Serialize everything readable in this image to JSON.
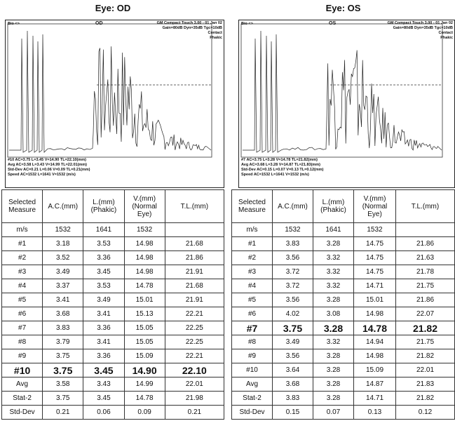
{
  "panels": [
    {
      "title": "Eye: OD",
      "scan": {
        "probe": "Bio <>",
        "eye": "OD",
        "device": "GM Compact Touch 3.00 - 01 Jan 02",
        "settings": "Gain=80dB Dyn=35dB Tgc=10dB",
        "mode": "Contact",
        "lens": "Phakic",
        "readouts": [
          "#10 AC=3.75 L=3.45 V=14.90 TL=22.10(mm)",
          "Avg AC=3.58 L=3.43 V=14.99 TL=22.01(mm)",
          "Std-Dev AC=0.21 L=0.06 V=0.09 TL=0.21(mm)",
          "Speed AC=1532 L=1641 V=1532 (m/s)"
        ]
      },
      "table": {
        "header": [
          "Selected Measure",
          "A.C.(mm)",
          "L.(mm) (Phakic)",
          "V.(mm) (Normal Eye)",
          "T.L.(mm)"
        ],
        "highlight_row": 10,
        "rows": [
          [
            "m/s",
            "1532",
            "1641",
            "1532",
            null
          ],
          [
            "#1",
            "3.18",
            "3.53",
            "14.98",
            "21.68"
          ],
          [
            "#2",
            "3.52",
            "3.36",
            "14.98",
            "21.86"
          ],
          [
            "#3",
            "3.49",
            "3.45",
            "14.98",
            "21.91"
          ],
          [
            "#4",
            "3.37",
            "3.53",
            "14.78",
            "21.68"
          ],
          [
            "#5",
            "3.41",
            "3.49",
            "15.01",
            "21.91"
          ],
          [
            "#6",
            "3.68",
            "3.41",
            "15.13",
            "22.21"
          ],
          [
            "#7",
            "3.83",
            "3.36",
            "15.05",
            "22.25"
          ],
          [
            "#8",
            "3.79",
            "3.41",
            "15.05",
            "22.25"
          ],
          [
            "#9",
            "3.75",
            "3.36",
            "15.09",
            "22.21"
          ],
          [
            "#10",
            "3.75",
            "3.45",
            "14.90",
            "22.10"
          ],
          [
            "Avg",
            "3.58",
            "3.43",
            "14.99",
            "22.01"
          ],
          [
            "Stat-2",
            "3.75",
            "3.45",
            "14.78",
            "21.98"
          ],
          [
            "Std-Dev",
            "0.21",
            "0.06",
            "0.09",
            "0.21"
          ]
        ]
      }
    },
    {
      "title": "Eye: OS",
      "scan": {
        "probe": "Bio <>",
        "eye": "OS",
        "device": "GM Compact Touch 3.00 - 01 Jan 02",
        "settings": "Gain=80dB Dyn=35dB Tgc=10dB",
        "mode": "Contact",
        "lens": "Phakic",
        "readouts": [
          "#7 AC=3.75 L=3.28 V=14.78 TL=21.82(mm)",
          "Avg AC=3.68 L=3.28 V=14.87 TL=21.83(mm)",
          "Std-Dev AC=0.15 L=0.07 V=0.13 TL=0.12(mm)",
          "Speed AC=1532 L=1641 V=1532 (m/s)"
        ]
      },
      "table": {
        "header": [
          "Selected Measure",
          "A.C.(mm)",
          "L.(mm) (Phakic)",
          "V.(mm) (Normal Eye)",
          "T.L.(mm)"
        ],
        "highlight_row": 7,
        "rows": [
          [
            "m/s",
            "1532",
            "1641",
            "1532",
            null
          ],
          [
            "#1",
            "3.83",
            "3.28",
            "14.75",
            "21.86"
          ],
          [
            "#2",
            "3.56",
            "3.32",
            "14.75",
            "21.63"
          ],
          [
            "#3",
            "3.72",
            "3.32",
            "14.75",
            "21.78"
          ],
          [
            "#4",
            "3.72",
            "3.32",
            "14.71",
            "21.75"
          ],
          [
            "#5",
            "3.56",
            "3.28",
            "15.01",
            "21.86"
          ],
          [
            "#6",
            "4.02",
            "3.08",
            "14.98",
            "22.07"
          ],
          [
            "#7",
            "3.75",
            "3.28",
            "14.78",
            "21.82"
          ],
          [
            "#8",
            "3.49",
            "3.32",
            "14.94",
            "21.75"
          ],
          [
            "#9",
            "3.56",
            "3.28",
            "14.98",
            "21.82"
          ],
          [
            "#10",
            "3.64",
            "3.28",
            "15.09",
            "22.01"
          ],
          [
            "Avg",
            "3.68",
            "3.28",
            "14.87",
            "21.83"
          ],
          [
            "Stat-2",
            "3.83",
            "3.28",
            "14.71",
            "21.82"
          ],
          [
            "Std-Dev",
            "0.15",
            "0.07",
            "0.13",
            "0.12"
          ]
        ]
      }
    }
  ]
}
